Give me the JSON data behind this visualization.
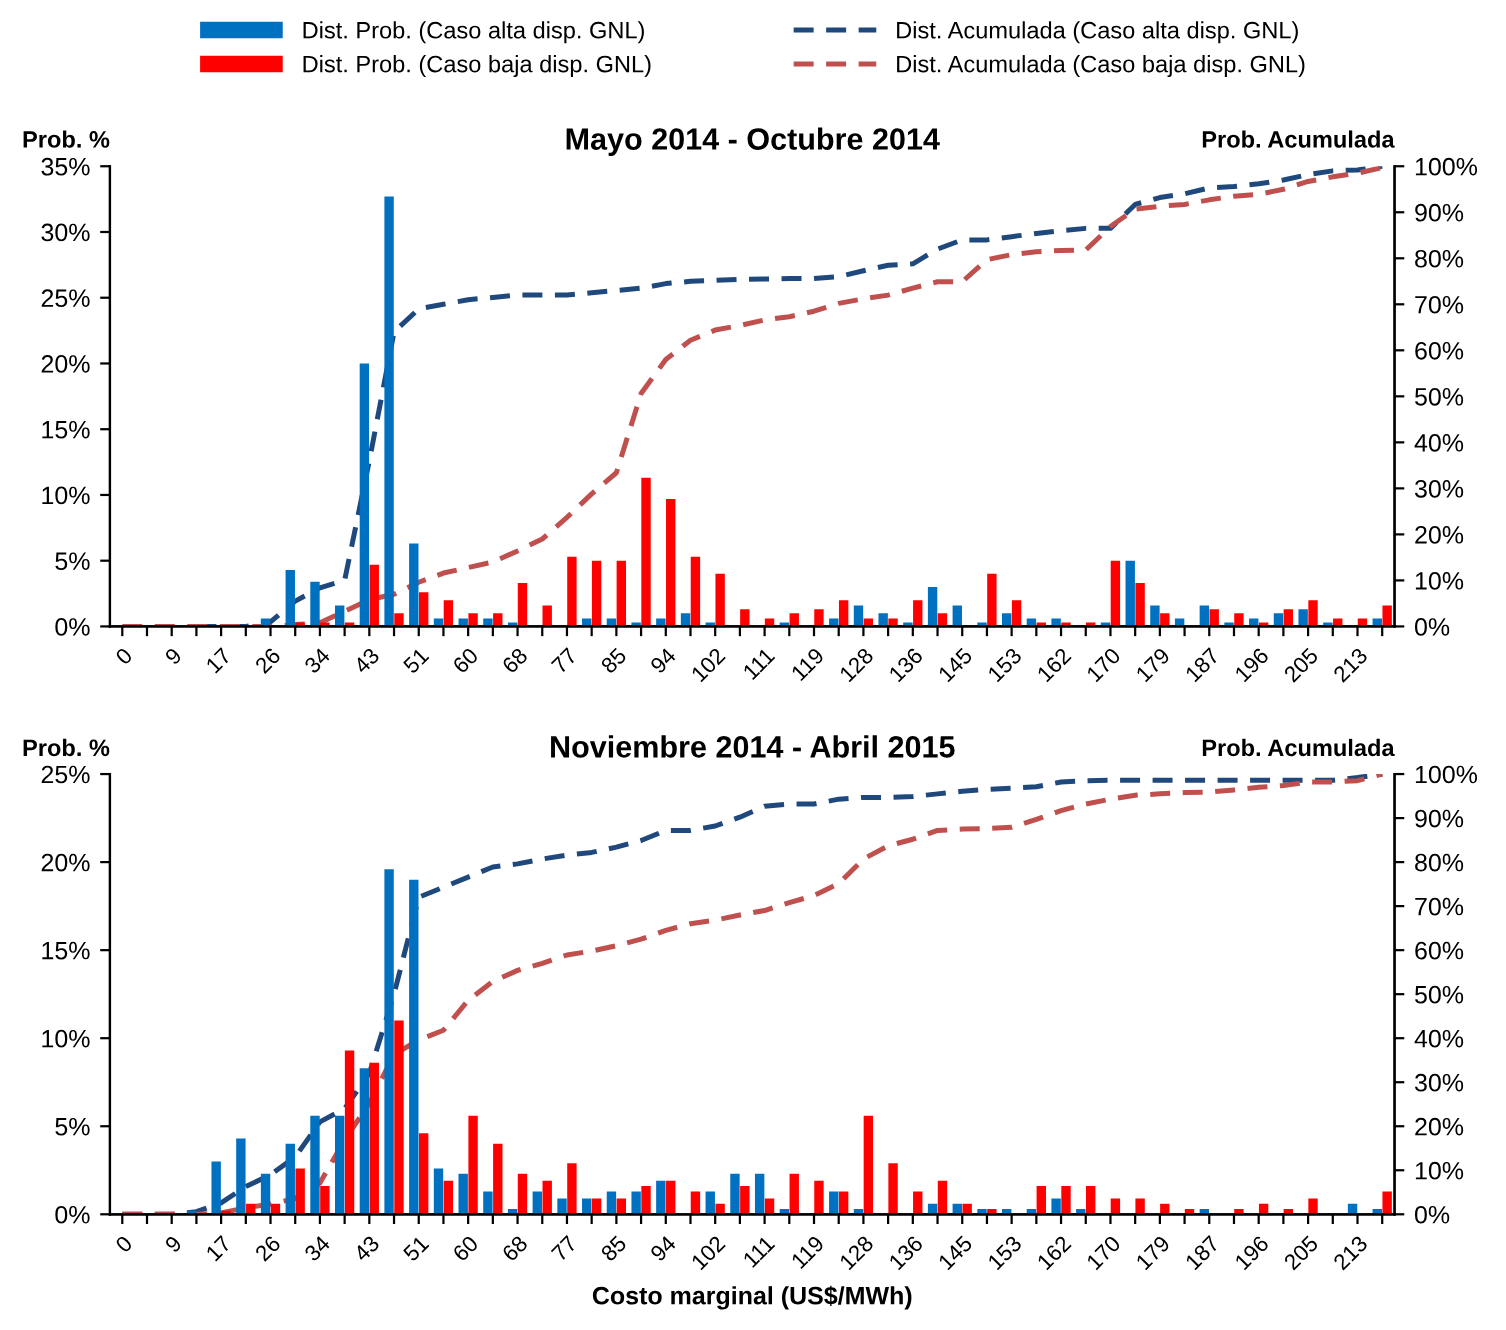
{
  "chart_data": [
    {
      "type": "bar",
      "title": "Mayo 2014 - Octubre 2014",
      "ylabel": "Prob. %",
      "y2label": "Prob. Acumulada",
      "legend": "top",
      "categories": [
        "0",
        null,
        "9",
        null,
        "17",
        null,
        "26",
        null,
        "34",
        null,
        "43",
        null,
        "51",
        null,
        "60",
        null,
        "68",
        null,
        "77",
        null,
        "85",
        null,
        "94",
        null,
        "102",
        null,
        "111",
        null,
        "119",
        null,
        "128",
        null,
        "136",
        null,
        "145",
        null,
        "153",
        null,
        "162",
        null,
        "170",
        null,
        "179",
        null,
        "187",
        null,
        "196",
        null,
        "205",
        null,
        "213",
        null
      ],
      "ylim": [
        0,
        35
      ],
      "yticks": [
        {
          "value": 0,
          "label": "0%"
        },
        {
          "value": 5,
          "label": "5%"
        },
        {
          "value": 10,
          "label": "10%"
        },
        {
          "value": 15,
          "label": "15%"
        },
        {
          "value": 20,
          "label": "20%"
        },
        {
          "value": 25,
          "label": "25%"
        },
        {
          "value": 30,
          "label": "30%"
        },
        {
          "value": 35,
          "label": "35%"
        }
      ],
      "y2lim": [
        0,
        100
      ],
      "y2ticks": [
        {
          "value": 0,
          "label": "0%"
        },
        {
          "value": 10,
          "label": "10%"
        },
        {
          "value": 20,
          "label": "20%"
        },
        {
          "value": 30,
          "label": "30%"
        },
        {
          "value": 40,
          "label": "40%"
        },
        {
          "value": 50,
          "label": "50%"
        },
        {
          "value": 60,
          "label": "60%"
        },
        {
          "value": 70,
          "label": "70%"
        },
        {
          "value": 80,
          "label": "80%"
        },
        {
          "value": 90,
          "label": "90%"
        },
        {
          "value": 100,
          "label": "100%"
        }
      ],
      "series": [
        {
          "name": "Dist. Prob. (Caso alta disp. GNL)",
          "color": "#0070c0",
          "values": [
            0,
            0,
            0,
            0,
            0,
            0,
            0.6,
            4.3,
            3.4,
            1.6,
            20.0,
            32.7,
            6.3,
            0.6,
            0.6,
            0.6,
            0.3,
            0,
            0,
            0.6,
            0.6,
            0.3,
            0.6,
            1.0,
            0.3,
            0,
            0,
            0.3,
            0,
            0.6,
            1.6,
            1.0,
            0.3,
            3.0,
            1.6,
            0.3,
            1.0,
            0.6,
            0.6,
            0,
            0.3,
            5.0,
            1.6,
            0.6,
            1.6,
            0.3,
            0.6,
            1.0,
            1.3,
            0.3,
            0,
            0.6
          ]
        },
        {
          "name": "Dist. Prob. (Caso baja disp. GNL)",
          "color": "#ff0000",
          "values": [
            0,
            0,
            0,
            0,
            0,
            0,
            0,
            0.3,
            0.3,
            0.3,
            4.7,
            1.0,
            2.6,
            2.0,
            1.0,
            1.0,
            3.3,
            1.6,
            5.3,
            5.0,
            5.0,
            11.3,
            9.7,
            5.3,
            4.0,
            1.3,
            0.6,
            1.0,
            1.3,
            2.0,
            0.6,
            0.6,
            2.0,
            1.0,
            0,
            4.0,
            2.0,
            0.3,
            0.3,
            0.3,
            5.0,
            3.3,
            1.0,
            0,
            1.3,
            1.0,
            0.3,
            1.3,
            2.0,
            0.6,
            0.6,
            1.6
          ]
        },
        {
          "name": "Dist. Acumulada (Caso alta disp. GNL)",
          "type": "line",
          "axis": "y2",
          "line_style": "dashed",
          "color": "#1f497d",
          "values": [
            null,
            null,
            null,
            0,
            0,
            0,
            1,
            5.5,
            8.4,
            10,
            36,
            64,
            69,
            70,
            71,
            71.5,
            72,
            72,
            72,
            72.5,
            73,
            73.5,
            74.5,
            75,
            75.2,
            75.4,
            75.5,
            75.6,
            75.6,
            76,
            77.3,
            78.5,
            78.8,
            82,
            84,
            84,
            84.7,
            85.4,
            86,
            86.5,
            86.5,
            91.7,
            93.2,
            94,
            95.3,
            95.6,
            96.2,
            97,
            98.2,
            99,
            99.2,
            100
          ]
        },
        {
          "name": "Dist. Acumulada (Caso baja disp. GNL)",
          "type": "line",
          "axis": "y2",
          "line_style": "dashed",
          "color": "#c0504d",
          "values": [
            0,
            0,
            0,
            0,
            0,
            0,
            0,
            0.4,
            0.8,
            3.3,
            5.8,
            7,
            9.6,
            11.6,
            12.8,
            14,
            16.4,
            19,
            23.7,
            28.8,
            33.4,
            50.6,
            58,
            62.2,
            64.4,
            65.4,
            66.6,
            67.3,
            68.5,
            70.2,
            71.2,
            72,
            73.5,
            74.9,
            74.9,
            79.7,
            80.8,
            81.4,
            81.7,
            81.8,
            86.9,
            90.7,
            91.3,
            91.7,
            92.7,
            93.5,
            93.9,
            95,
            96.7,
            97.7,
            98.5,
            99.7
          ]
        }
      ]
    },
    {
      "type": "bar",
      "title": "Noviembre 2014 - Abril 2015",
      "ylabel": "Prob. %",
      "y2label": "Prob. Acumulada",
      "xlabel": "Costo marginal (US$/MWh)",
      "categories": [
        "0",
        null,
        "9",
        null,
        "17",
        null,
        "26",
        null,
        "34",
        null,
        "43",
        null,
        "51",
        null,
        "60",
        null,
        "68",
        null,
        "77",
        null,
        "85",
        null,
        "94",
        null,
        "102",
        null,
        "111",
        null,
        "119",
        null,
        "128",
        null,
        "136",
        null,
        "145",
        null,
        "153",
        null,
        "162",
        null,
        "170",
        null,
        "179",
        null,
        "187",
        null,
        "196",
        null,
        "205",
        null,
        "213",
        null
      ],
      "ylim": [
        0,
        25
      ],
      "yticks": [
        {
          "value": 0,
          "label": "0%"
        },
        {
          "value": 5,
          "label": "5%"
        },
        {
          "value": 10,
          "label": "10%"
        },
        {
          "value": 15,
          "label": "15%"
        },
        {
          "value": 20,
          "label": "20%"
        },
        {
          "value": 25,
          "label": "25%"
        }
      ],
      "y2lim": [
        0,
        100
      ],
      "y2ticks": [
        {
          "value": 0,
          "label": "0%"
        },
        {
          "value": 10,
          "label": "10%"
        },
        {
          "value": 20,
          "label": "20%"
        },
        {
          "value": 30,
          "label": "30%"
        },
        {
          "value": 40,
          "label": "40%"
        },
        {
          "value": 50,
          "label": "50%"
        },
        {
          "value": 60,
          "label": "60%"
        },
        {
          "value": 70,
          "label": "70%"
        },
        {
          "value": 80,
          "label": "80%"
        },
        {
          "value": 90,
          "label": "90%"
        },
        {
          "value": 100,
          "label": "100%"
        }
      ],
      "series": [
        {
          "color": "#0070c0",
          "values": [
            0,
            0,
            0,
            0.2,
            3.0,
            4.3,
            2.3,
            4.0,
            5.6,
            5.6,
            8.3,
            19.6,
            19.0,
            2.6,
            2.3,
            1.3,
            0.3,
            1.3,
            0.9,
            0.9,
            1.3,
            1.3,
            1.9,
            0,
            1.3,
            2.3,
            2.3,
            0.3,
            0,
            1.3,
            0.3,
            0,
            0,
            0.6,
            0.6,
            0.3,
            0.3,
            0.3,
            0.9,
            0.3,
            0,
            0,
            0,
            0,
            0.3,
            0,
            0,
            0,
            0,
            0,
            0.6,
            0.3
          ]
        },
        {
          "color": "#ff0000",
          "values": [
            0,
            0,
            0,
            0,
            0.2,
            0.6,
            0.6,
            2.6,
            1.6,
            9.3,
            8.6,
            11.0,
            4.6,
            1.9,
            5.6,
            4.0,
            2.3,
            1.9,
            2.9,
            0.9,
            0.9,
            1.6,
            1.9,
            1.3,
            0.6,
            1.6,
            0.9,
            2.3,
            1.9,
            1.3,
            5.6,
            2.9,
            1.3,
            1.9,
            0.6,
            0.3,
            0,
            1.6,
            1.6,
            1.6,
            0.9,
            0.9,
            0.6,
            0.3,
            0,
            0.3,
            0.6,
            0.3,
            0.9,
            0,
            0,
            1.3
          ]
        },
        {
          "type": "line",
          "axis": "y2",
          "line_style": "dashed",
          "color": "#1f497d",
          "values": [
            0,
            0,
            0,
            0.6,
            2.6,
            6.3,
            9,
            13,
            21,
            24,
            32,
            50,
            72,
            74.3,
            76.6,
            78.9,
            79.6,
            80.7,
            81.6,
            82.2,
            83.4,
            84.9,
            87.2,
            87.2,
            88.2,
            90.2,
            92.7,
            93.2,
            93.2,
            94.3,
            94.7,
            94.7,
            94.9,
            95.5,
            96.1,
            96.5,
            96.8,
            97.1,
            98.2,
            98.5,
            98.6,
            98.6,
            98.6,
            98.6,
            98.6,
            98.6,
            98.6,
            98.6,
            98.6,
            98.6,
            99.2,
            100
          ]
        },
        {
          "type": "line",
          "axis": "y2",
          "line_style": "dashed",
          "color": "#c0504d",
          "values": [
            0,
            0,
            0,
            0,
            0.3,
            1.5,
            2.3,
            3.6,
            7.1,
            16.9,
            25.2,
            36.3,
            39.6,
            41.8,
            48.6,
            52.9,
            55.4,
            57,
            58.9,
            59.8,
            61,
            62.5,
            64.5,
            66,
            66.8,
            68,
            69,
            70.8,
            72.4,
            75.1,
            80.7,
            83.7,
            85.2,
            87.2,
            87.5,
            87.6,
            87.9,
            89.7,
            91.7,
            93.2,
            94.3,
            95.2,
            95.5,
            95.8,
            95.9,
            96.4,
            97,
            97.4,
            98.2,
            98.2,
            98.5,
            100
          ]
        }
      ]
    }
  ]
}
